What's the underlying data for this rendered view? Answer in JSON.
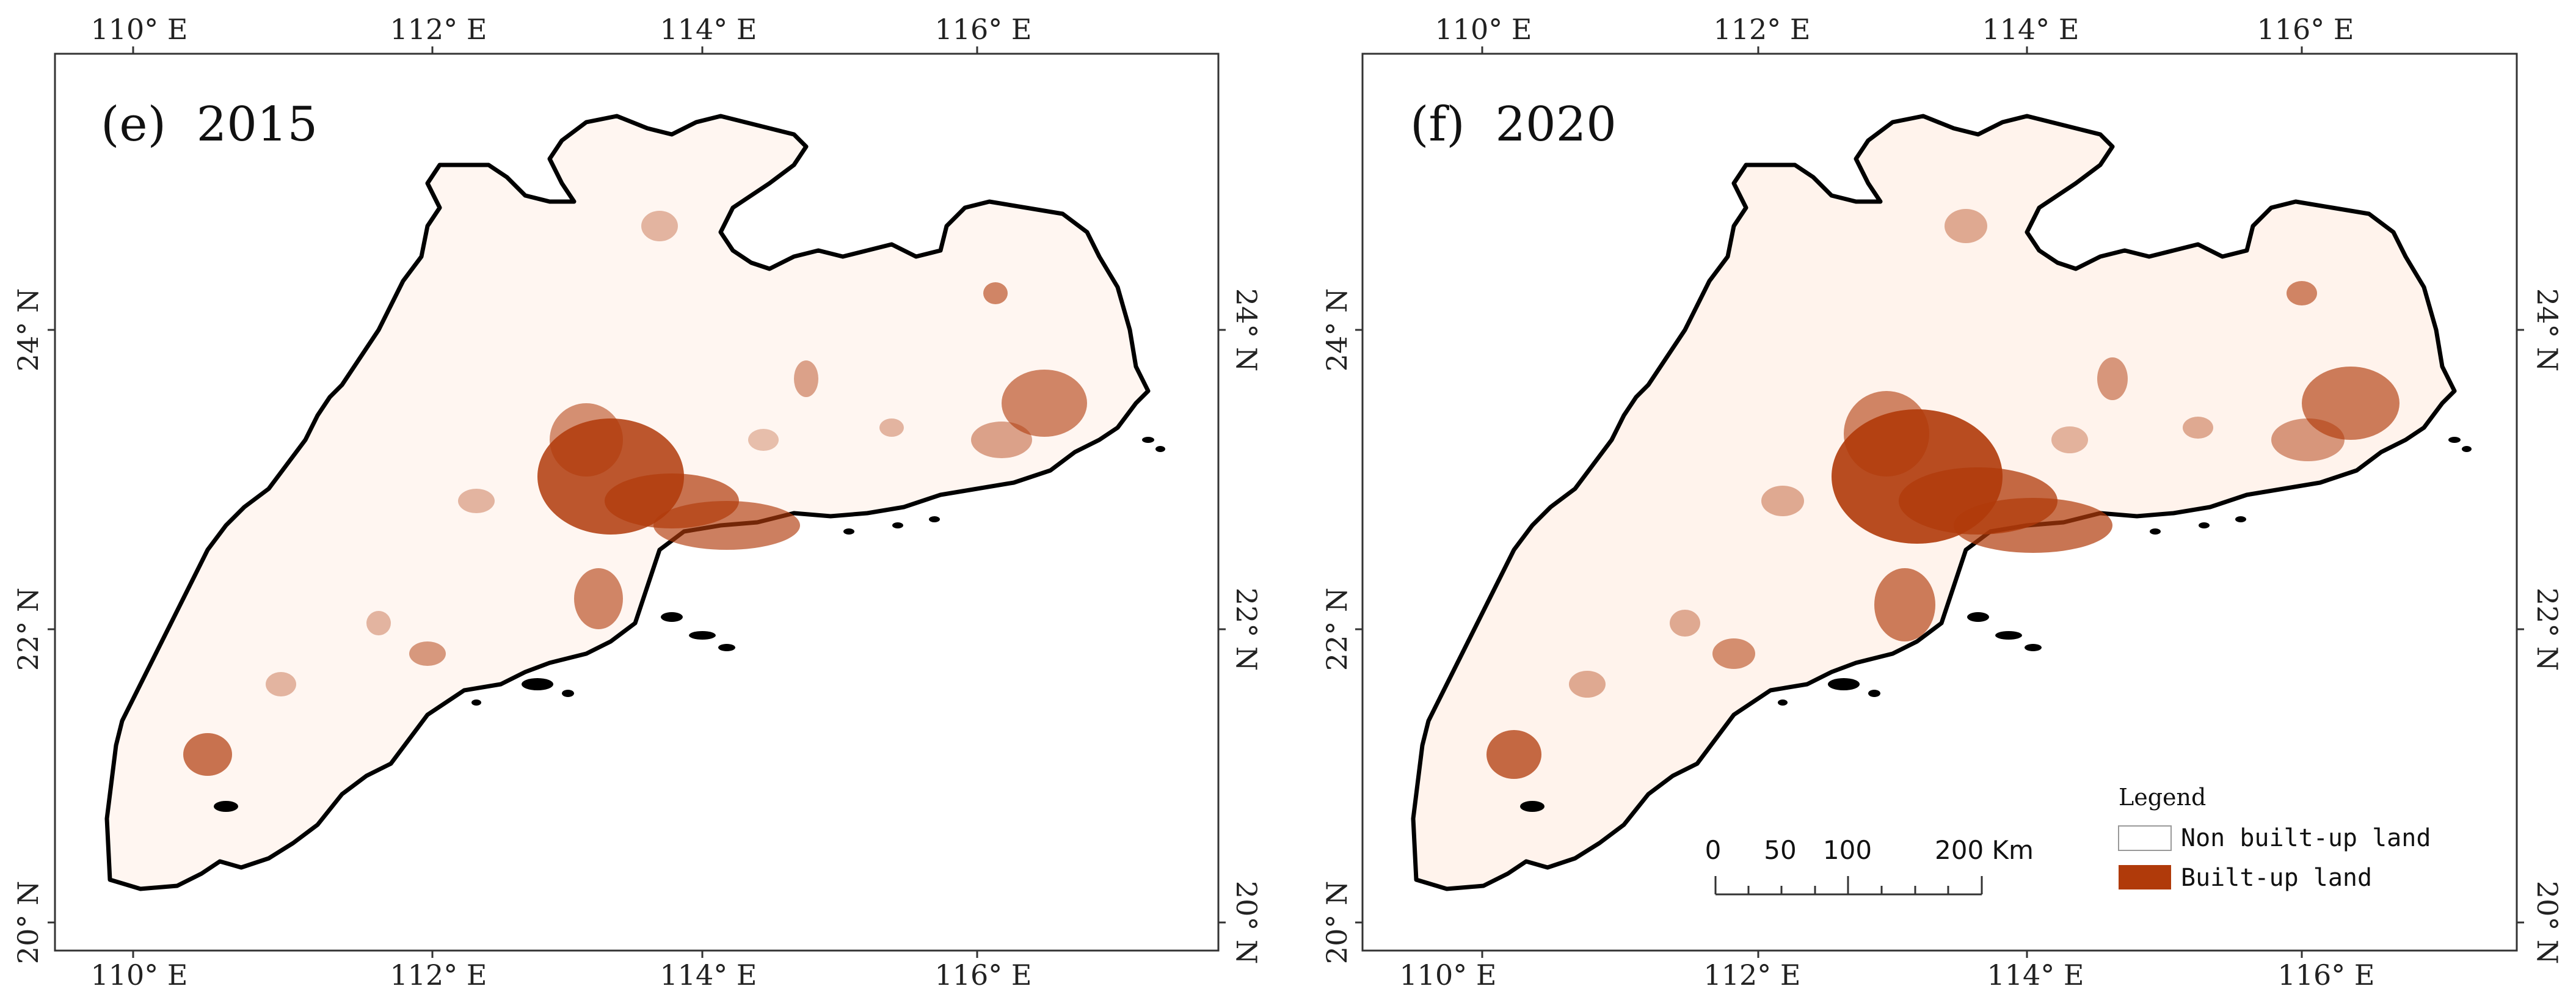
{
  "figure": {
    "longitude_ticks": [
      "110° E",
      "112° E",
      "114° E",
      "116° E"
    ],
    "latitude_ticks": [
      "24° N",
      "22° N",
      "20° N"
    ],
    "colors": {
      "built_up": "#b03a0a",
      "non_built_up": "#ffffff",
      "boundary": "#000000",
      "frame": "#333333"
    }
  },
  "panels": [
    {
      "id": "e",
      "title": "(e)  2015"
    },
    {
      "id": "f",
      "title": "(f)  2020"
    }
  ],
  "legend": {
    "title": "Legend",
    "items": [
      {
        "label": "Non built-up land",
        "swatch": "#ffffff"
      },
      {
        "label": "Built-up land",
        "swatch": "#b03a0a"
      }
    ]
  },
  "scale_bar": {
    "labels": [
      "0",
      "50",
      "100",
      "200 Km"
    ]
  }
}
